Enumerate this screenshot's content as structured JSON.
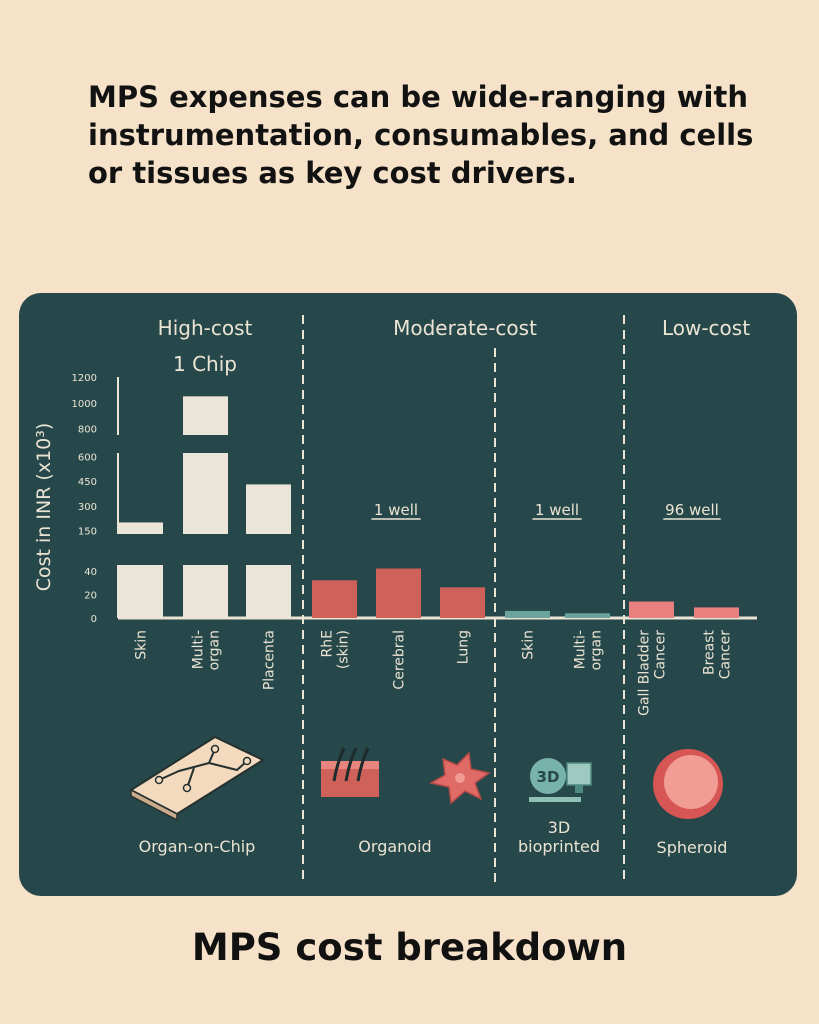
{
  "headline": "MPS expenses can be wide-ranging with instrumentation, consumables, and cells or tissues as key cost drivers.",
  "footer_title": "MPS cost breakdown",
  "colors": {
    "background": "#f6e2c8",
    "panel": "#27484a",
    "high_cost_bar": "#ece6d8",
    "moderate_cost_bar": "#d0605a",
    "bioprinted_bar": "#6aa49a",
    "spheroid_bar": "#e88080",
    "text_light": "#ebe4d4"
  },
  "chart_data": {
    "type": "bar",
    "title": "MPS cost breakdown",
    "ylabel": "Cost in INR (x10³)",
    "xlabel": "",
    "y_axis_segments": [
      {
        "ticks": [
          0,
          20,
          40
        ],
        "range": [
          0,
          45
        ]
      },
      {
        "ticks": [
          150,
          300,
          450,
          600
        ],
        "range": [
          130,
          620
        ]
      },
      {
        "ticks": [
          800,
          1000,
          1200
        ],
        "range": [
          750,
          1200
        ]
      }
    ],
    "groups": [
      {
        "name": "High-cost",
        "unit_label": "1 Chip",
        "model": "Organ-on-Chip",
        "categories": [
          "Skin",
          "Multi-organ",
          "Placenta"
        ],
        "values": [
          200,
          1050,
          430
        ]
      },
      {
        "name": "Moderate-cost",
        "unit_label": "1 well",
        "model": "Organoid",
        "categories": [
          "RhE (skin)",
          "Cerebral",
          "Lung"
        ],
        "values": [
          32,
          42,
          26
        ]
      },
      {
        "name": "Moderate-cost",
        "unit_label": "1 well",
        "model": "3D bioprinted",
        "categories": [
          "Skin",
          "Multi-organ"
        ],
        "values": [
          6,
          4
        ]
      },
      {
        "name": "Low-cost",
        "unit_label": "96 well",
        "model": "Spheroid",
        "categories": [
          "Gall Bladder Cancer",
          "Breast Cancer"
        ],
        "values": [
          14,
          9
        ]
      }
    ],
    "category_lines": [
      [
        "Skin"
      ],
      [
        "Multi-",
        "organ"
      ],
      [
        "Placenta"
      ],
      [
        "RhE",
        "(skin)"
      ],
      [
        "Cerebral"
      ],
      [
        "Lung"
      ],
      [
        "Skin"
      ],
      [
        "Multi-",
        "organ"
      ],
      [
        "Gall Bladder",
        "Cancer"
      ],
      [
        "Breast",
        "Cancer"
      ]
    ],
    "section_headers": [
      "High-cost",
      "Moderate-cost",
      "Low-cost"
    ],
    "model_lines": [
      [
        "Organ-on-Chip"
      ],
      [
        "Organoid"
      ],
      [
        "3D",
        "bioprinted"
      ],
      [
        "Spheroid"
      ]
    ],
    "grid": false,
    "legend": "none"
  }
}
